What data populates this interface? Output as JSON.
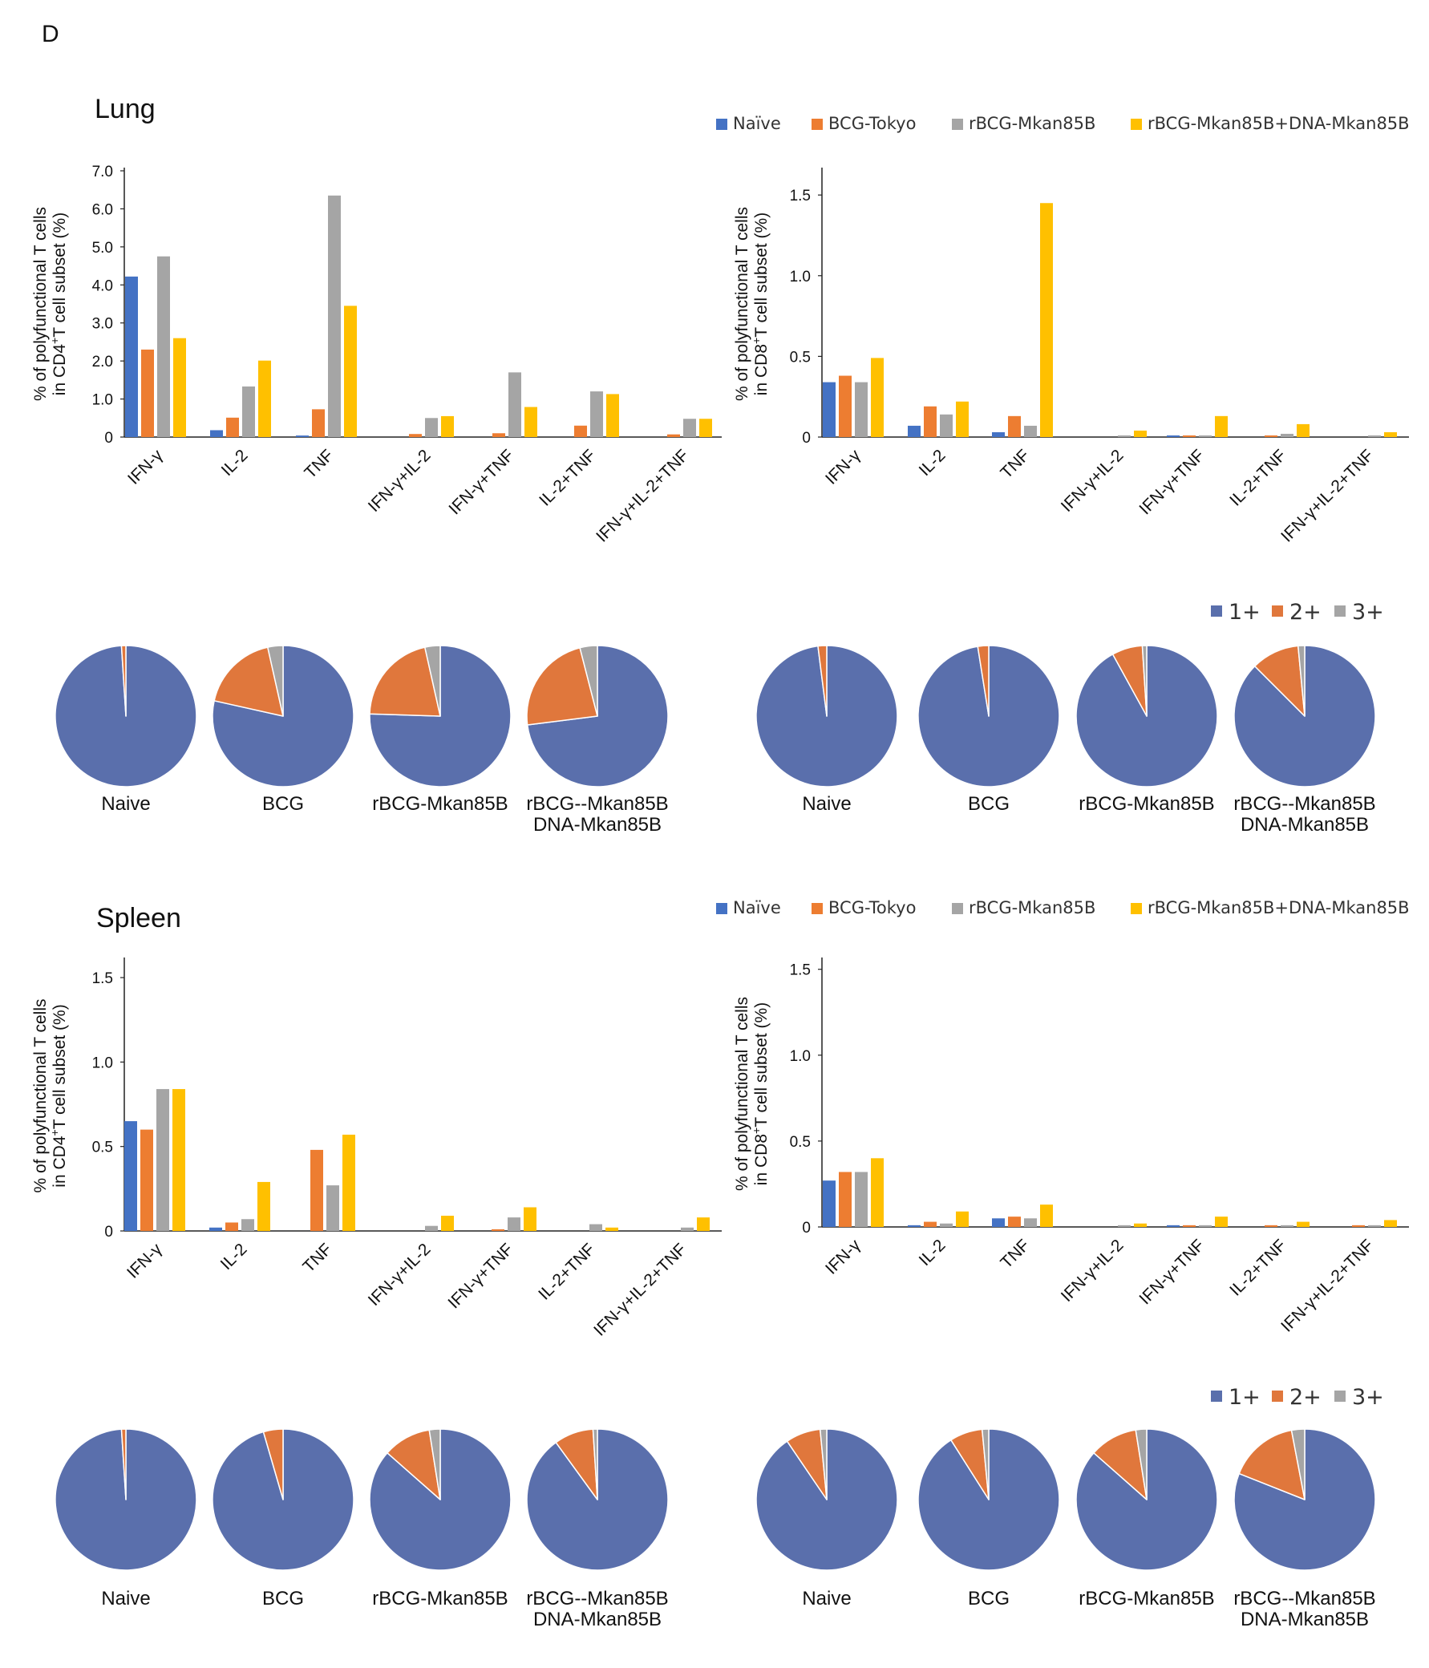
{
  "panel_label": "D",
  "colors": {
    "blue": "#4472C4",
    "orange": "#ED7D31",
    "gray": "#A5A5A5",
    "yellow": "#FFC000",
    "pie_blue": "#5A6FAC",
    "pie_orange": "#E0773C",
    "pie_gray": "#A5A5A5"
  },
  "bar_legend": [
    "Naïve",
    "BCG-Tokyo",
    "rBCG-Mkan85B",
    "rBCG-Mkan85B+DNA-Mkan85B"
  ],
  "pie_legend": [
    "1+",
    "2+",
    "3+"
  ],
  "sections": [
    {
      "title": "Lung"
    },
    {
      "title": "Spleen"
    }
  ],
  "chart_data": [
    {
      "id": "lung-cd4",
      "type": "bar",
      "section": "Lung",
      "ylabel_line1": "% of polyfunctional T cells",
      "ylabel_line2_pre": "in CD4",
      "ylabel_sup": "+",
      "ylabel_line2_post": "T cell subset (%)",
      "ylim": [
        0,
        7.0
      ],
      "yticks": [
        "0",
        "1.0",
        "2.0",
        "3.0",
        "4.0",
        "5.0",
        "6.0",
        "7.0"
      ],
      "categories": [
        "IFN-γ",
        "IL-2",
        "TNF",
        "IFN-γ+IL-2",
        "IFN-γ+TNF",
        "IL-2+TNF",
        "IFN-γ+IL-2+TNF"
      ],
      "series": [
        {
          "name": "Naïve",
          "values": [
            4.22,
            0.18,
            0.04,
            0.0,
            0.0,
            0.0,
            0.0
          ]
        },
        {
          "name": "BCG-Tokyo",
          "values": [
            2.3,
            0.51,
            0.73,
            0.08,
            0.1,
            0.3,
            0.07
          ]
        },
        {
          "name": "rBCG-Mkan85B",
          "values": [
            4.75,
            1.33,
            6.35,
            0.5,
            1.7,
            1.2,
            0.48
          ]
        },
        {
          "name": "rBCG-Mkan85B+DNA-Mkan85B",
          "values": [
            2.6,
            2.01,
            3.45,
            0.55,
            0.79,
            1.13,
            0.48
          ]
        }
      ]
    },
    {
      "id": "lung-cd8",
      "type": "bar",
      "section": "Lung",
      "ylabel_line1": "% of polyfunctional T cells",
      "ylabel_line2_pre": "in CD8",
      "ylabel_sup": "+",
      "ylabel_line2_post": "T cell subset (%)",
      "ylim": [
        0,
        1.65
      ],
      "ytick_values": [
        0,
        0.5,
        1.0,
        1.5
      ],
      "yticks": [
        "0",
        "0.5",
        "1.0",
        "1.5"
      ],
      "categories": [
        "IFN-γ",
        "IL-2",
        "TNF",
        "IFN-γ+IL-2",
        "IFN-γ+TNF",
        "IL-2+TNF",
        "IFN-γ+IL-2+TNF"
      ],
      "series": [
        {
          "name": "Naïve",
          "values": [
            0.34,
            0.07,
            0.03,
            0.0,
            0.01,
            0.0,
            0.0
          ]
        },
        {
          "name": "BCG-Tokyo",
          "values": [
            0.38,
            0.19,
            0.13,
            0.0,
            0.01,
            0.01,
            0.0
          ]
        },
        {
          "name": "rBCG-Mkan85B",
          "values": [
            0.34,
            0.14,
            0.07,
            0.01,
            0.01,
            0.02,
            0.01
          ]
        },
        {
          "name": "rBCG-Mkan85B+DNA-Mkan85B",
          "values": [
            0.49,
            0.22,
            1.45,
            0.04,
            0.13,
            0.08,
            0.03
          ]
        }
      ]
    },
    {
      "id": "spleen-cd4",
      "type": "bar",
      "section": "Spleen",
      "ylabel_line1": "% of polyfunctional T cells",
      "ylabel_line2_pre": "in CD4",
      "ylabel_sup": "+",
      "ylabel_line2_post": "T cell subset (%)",
      "ylim": [
        0,
        1.6
      ],
      "ytick_values": [
        0,
        0.5,
        1.0,
        1.5
      ],
      "yticks": [
        "0",
        "0.5",
        "1.0",
        "1.5"
      ],
      "categories": [
        "IFN-γ",
        "IL-2",
        "TNF",
        "IFN-γ+IL-2",
        "IFN-γ+TNF",
        "IL-2+TNF",
        "IFN-γ+IL-2+TNF"
      ],
      "series": [
        {
          "name": "Naïve",
          "values": [
            0.65,
            0.02,
            0.0,
            0.0,
            0.0,
            0.0,
            0.0
          ]
        },
        {
          "name": "BCG-Tokyo",
          "values": [
            0.6,
            0.05,
            0.48,
            0.0,
            0.01,
            0.0,
            0.0
          ]
        },
        {
          "name": "rBCG-Mkan85B",
          "values": [
            0.84,
            0.07,
            0.27,
            0.03,
            0.08,
            0.04,
            0.02
          ]
        },
        {
          "name": "rBCG-Mkan85B+DNA-Mkan85B",
          "values": [
            0.84,
            0.29,
            0.57,
            0.09,
            0.14,
            0.02,
            0.08
          ]
        }
      ]
    },
    {
      "id": "spleen-cd8",
      "type": "bar",
      "section": "Spleen",
      "ylabel_line1": "% of polyfunctional T cells",
      "ylabel_line2_pre": "in CD8",
      "ylabel_sup": "+",
      "ylabel_line2_post": "T cell subset (%)",
      "ylim": [
        0,
        1.55
      ],
      "ytick_values": [
        0,
        0.5,
        1.0,
        1.5
      ],
      "yticks": [
        "0",
        "0.5",
        "1.0",
        "1.5"
      ],
      "categories": [
        "IFN-γ",
        "IL-2",
        "TNF",
        "IFN-γ+IL-2",
        "IFN-γ+TNF",
        "IL-2+TNF",
        "IFN-γ+IL-2+TNF"
      ],
      "series": [
        {
          "name": "Naïve",
          "values": [
            0.27,
            0.01,
            0.05,
            0.0,
            0.01,
            0.0,
            0.0
          ]
        },
        {
          "name": "BCG-Tokyo",
          "values": [
            0.32,
            0.03,
            0.06,
            0.0,
            0.01,
            0.01,
            0.01
          ]
        },
        {
          "name": "rBCG-Mkan85B",
          "values": [
            0.32,
            0.02,
            0.05,
            0.01,
            0.01,
            0.01,
            0.01
          ]
        },
        {
          "name": "rBCG-Mkan85B+DNA-Mkan85B",
          "values": [
            0.4,
            0.09,
            0.13,
            0.02,
            0.06,
            0.03,
            0.04
          ]
        }
      ]
    },
    {
      "id": "lung-cd4-pies",
      "type": "pie",
      "section": "Lung",
      "groups": [
        {
          "label": [
            "Naive"
          ],
          "slices": [
            {
              "name": "1+",
              "value": 99.0
            },
            {
              "name": "2+",
              "value": 1.0
            },
            {
              "name": "3+",
              "value": 0.0
            }
          ]
        },
        {
          "label": [
            "BCG"
          ],
          "slices": [
            {
              "name": "1+",
              "value": 78.5
            },
            {
              "name": "2+",
              "value": 18.0
            },
            {
              "name": "3+",
              "value": 3.5
            }
          ]
        },
        {
          "label": [
            "rBCG-Mkan85B"
          ],
          "slices": [
            {
              "name": "1+",
              "value": 75.5
            },
            {
              "name": "2+",
              "value": 21.0
            },
            {
              "name": "3+",
              "value": 3.5
            }
          ]
        },
        {
          "label": [
            "rBCG--Mkan85B",
            "DNA-Mkan85B"
          ],
          "slices": [
            {
              "name": "1+",
              "value": 73.0
            },
            {
              "name": "2+",
              "value": 23.0
            },
            {
              "name": "3+",
              "value": 4.0
            }
          ]
        }
      ]
    },
    {
      "id": "lung-cd8-pies",
      "type": "pie",
      "section": "Lung",
      "groups": [
        {
          "label": [
            "Naive"
          ],
          "slices": [
            {
              "name": "1+",
              "value": 98.0
            },
            {
              "name": "2+",
              "value": 2.0
            },
            {
              "name": "3+",
              "value": 0.0
            }
          ]
        },
        {
          "label": [
            "BCG"
          ],
          "slices": [
            {
              "name": "1+",
              "value": 97.5
            },
            {
              "name": "2+",
              "value": 2.5
            },
            {
              "name": "3+",
              "value": 0.0
            }
          ]
        },
        {
          "label": [
            "rBCG-Mkan85B"
          ],
          "slices": [
            {
              "name": "1+",
              "value": 92.0
            },
            {
              "name": "2+",
              "value": 7.0
            },
            {
              "name": "3+",
              "value": 1.0
            }
          ]
        },
        {
          "label": [
            "rBCG--Mkan85B",
            "DNA-Mkan85B"
          ],
          "slices": [
            {
              "name": "1+",
              "value": 87.5
            },
            {
              "name": "2+",
              "value": 11.0
            },
            {
              "name": "3+",
              "value": 1.5
            }
          ]
        }
      ]
    },
    {
      "id": "spleen-cd4-pies",
      "type": "pie",
      "section": "Spleen",
      "groups": [
        {
          "label": [
            "Naive"
          ],
          "slices": [
            {
              "name": "1+",
              "value": 99.0
            },
            {
              "name": "2+",
              "value": 1.0
            },
            {
              "name": "3+",
              "value": 0.0
            }
          ]
        },
        {
          "label": [
            "BCG"
          ],
          "slices": [
            {
              "name": "1+",
              "value": 95.5
            },
            {
              "name": "2+",
              "value": 4.5
            },
            {
              "name": "3+",
              "value": 0.0
            }
          ]
        },
        {
          "label": [
            "rBCG-Mkan85B"
          ],
          "slices": [
            {
              "name": "1+",
              "value": 86.5
            },
            {
              "name": "2+",
              "value": 11.0
            },
            {
              "name": "3+",
              "value": 2.5
            }
          ]
        },
        {
          "label": [
            "rBCG--Mkan85B",
            "DNA-Mkan85B"
          ],
          "slices": [
            {
              "name": "1+",
              "value": 90.0
            },
            {
              "name": "2+",
              "value": 9.0
            },
            {
              "name": "3+",
              "value": 1.0
            }
          ]
        }
      ]
    },
    {
      "id": "spleen-cd8-pies",
      "type": "pie",
      "section": "Spleen",
      "groups": [
        {
          "label": [
            "Naive"
          ],
          "slices": [
            {
              "name": "1+",
              "value": 90.5
            },
            {
              "name": "2+",
              "value": 8.0
            },
            {
              "name": "3+",
              "value": 1.5
            }
          ]
        },
        {
          "label": [
            "BCG"
          ],
          "slices": [
            {
              "name": "1+",
              "value": 91.0
            },
            {
              "name": "2+",
              "value": 7.5
            },
            {
              "name": "3+",
              "value": 1.5
            }
          ]
        },
        {
          "label": [
            "rBCG-Mkan85B"
          ],
          "slices": [
            {
              "name": "1+",
              "value": 86.5
            },
            {
              "name": "2+",
              "value": 11.0
            },
            {
              "name": "3+",
              "value": 2.5
            }
          ]
        },
        {
          "label": [
            "rBCG--Mkan85B",
            "DNA-Mkan85B"
          ],
          "slices": [
            {
              "name": "1+",
              "value": 81.0
            },
            {
              "name": "2+",
              "value": 16.0
            },
            {
              "name": "3+",
              "value": 3.0
            }
          ]
        }
      ]
    }
  ]
}
